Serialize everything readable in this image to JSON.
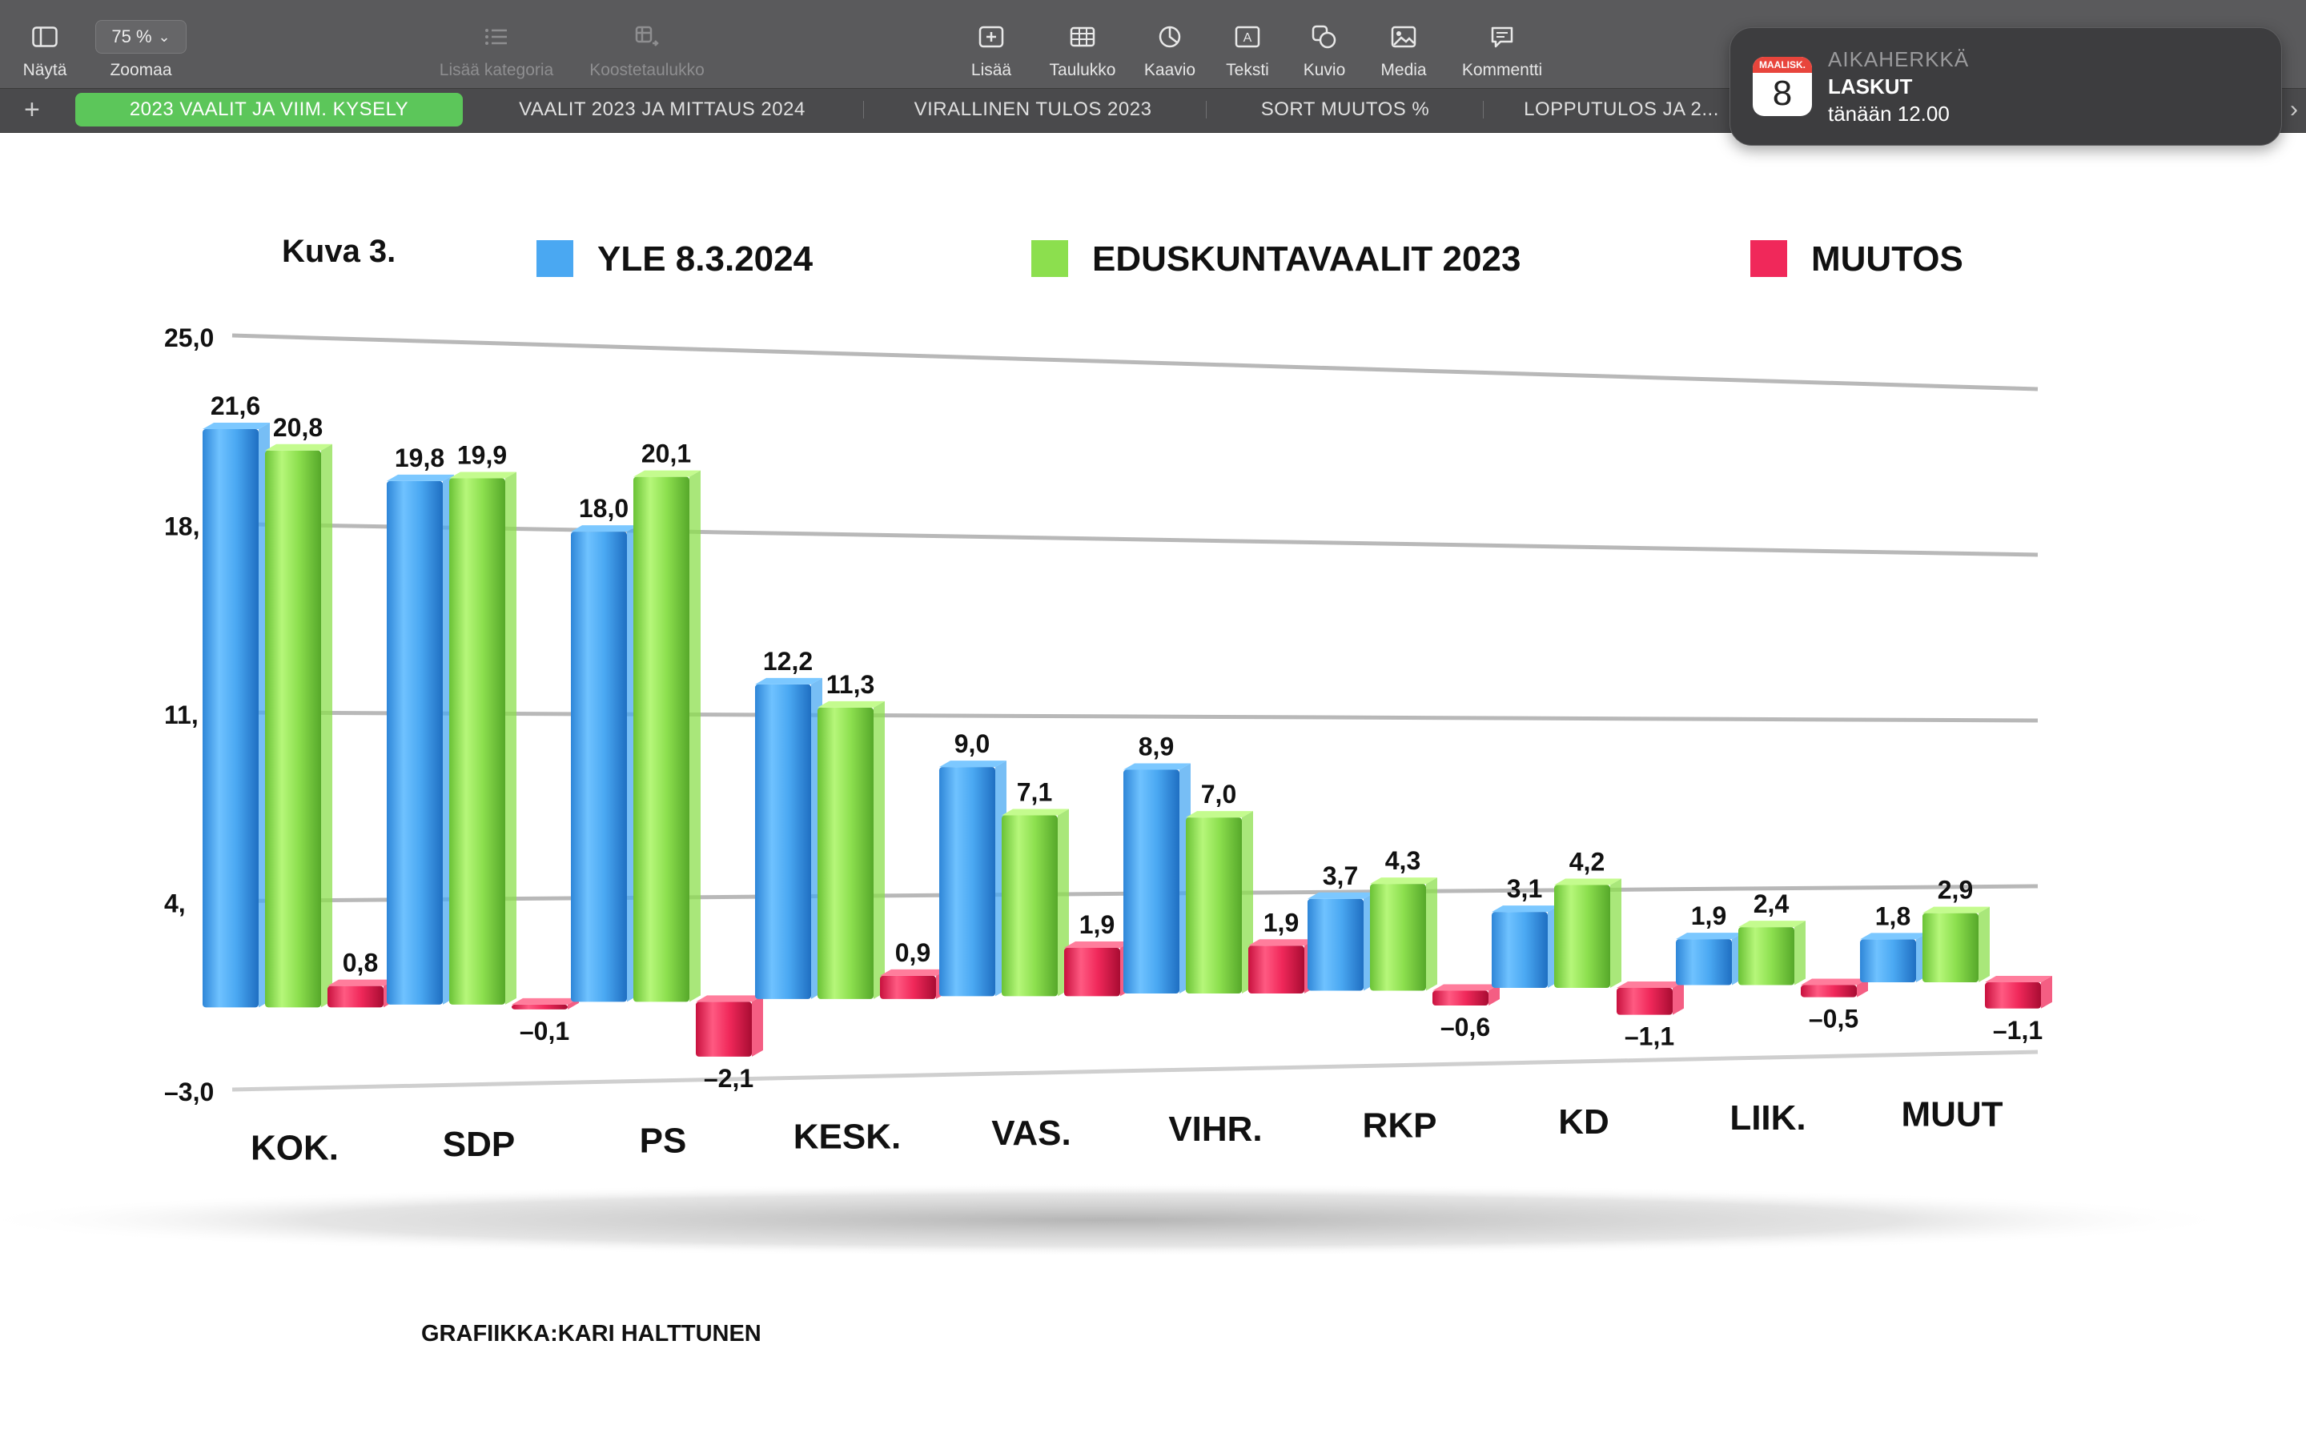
{
  "toolbar": {
    "items": [
      {
        "label": "Näytä",
        "icon": "sidebar-icon"
      },
      {
        "label": "Zoomaa",
        "value": "75 %",
        "icon": "chevron-down-icon"
      },
      {
        "label": "Lisää kategoria",
        "icon": "list-icon"
      },
      {
        "label": "Koostetaulukko",
        "icon": "pivot-table-icon"
      },
      {
        "label": "Lisää",
        "icon": "plus-box-icon"
      },
      {
        "label": "Taulukko",
        "icon": "table-icon"
      },
      {
        "label": "Kaavio",
        "icon": "chart-icon"
      },
      {
        "label": "Teksti",
        "icon": "text-box-icon"
      },
      {
        "label": "Kuvio",
        "icon": "shape-icon"
      },
      {
        "label": "Media",
        "icon": "image-icon"
      },
      {
        "label": "Kommentti",
        "icon": "comment-icon"
      }
    ]
  },
  "sheets": {
    "tabs": [
      {
        "label": "2023 VAALIT JA VIIM. KYSELY",
        "active": true
      },
      {
        "label": "VAALIT 2023 JA MITTAUS 2024"
      },
      {
        "label": "VIRALLINEN TULOS 2023"
      },
      {
        "label": "SORT MUUTOS %"
      },
      {
        "label": "LOPPUTULOS JA 2..."
      }
    ],
    "active_color": "#5cc65a"
  },
  "notification": {
    "app": "AIKAHERKKÄ",
    "title": "LASKUT",
    "body": "tänään 12.00",
    "calendar_month": "MAALISK.",
    "calendar_day": "8"
  },
  "chart_data": {
    "type": "bar",
    "title": "Kuva 3.",
    "credit": "GRAFIIKKA:KARI HALTTUNEN",
    "categories": [
      "KOK.",
      "SDP",
      "PS",
      "KESK.",
      "VAS.",
      "VIHR.",
      "RKP",
      "KD",
      "LIIK.",
      "MUUT"
    ],
    "series": [
      {
        "name": "YLE 8.3.2024",
        "color": "#4aa8f2",
        "values": [
          21.6,
          19.8,
          18.0,
          12.2,
          9.0,
          8.9,
          3.7,
          3.1,
          1.9,
          1.8
        ],
        "labels": [
          "21,6",
          "19,8",
          "18,0",
          "12,2",
          "9,0",
          "8,9",
          "3,7",
          "3,1",
          "1,9",
          "1,8"
        ]
      },
      {
        "name": "EDUSKUNTAVAALIT 2023",
        "color": "#8cdf4e",
        "values": [
          20.8,
          19.9,
          20.1,
          11.3,
          7.1,
          7.0,
          4.3,
          4.2,
          2.4,
          2.9
        ],
        "labels": [
          "20,8",
          "19,9",
          "20,1",
          "11,3",
          "7,1",
          "7,0",
          "4,3",
          "4,2",
          "2,4",
          "2,9"
        ]
      },
      {
        "name": "MUUTOS",
        "color": "#f0285a",
        "values": [
          0.8,
          -0.1,
          -2.1,
          0.9,
          1.9,
          1.9,
          -0.6,
          -1.1,
          -0.5,
          -1.1
        ],
        "labels": [
          "0,8",
          "–0,1",
          "–2,1",
          "0,9",
          "1,9",
          "1,9",
          "–0,6",
          "–1,1",
          "–0,5",
          "–1,1"
        ]
      }
    ],
    "y_ticks": [
      {
        "value": 25,
        "label": "25,0"
      },
      {
        "value": 18,
        "label": "18,"
      },
      {
        "value": 11,
        "label": "11,"
      },
      {
        "value": 4,
        "label": "4,"
      },
      {
        "value": -3,
        "label": "–3,0"
      }
    ],
    "ylim": [
      -3,
      25
    ],
    "grid": true,
    "legend_position": "top"
  }
}
